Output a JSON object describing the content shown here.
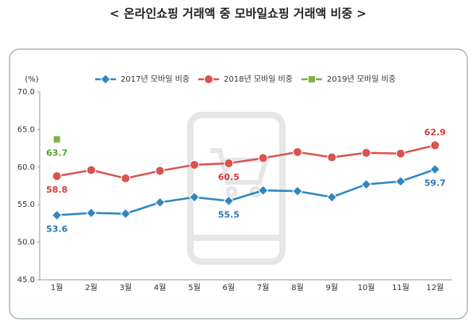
{
  "chart_data": {
    "type": "line",
    "title": "< 온라인쇼핑 거래액 중 모바일쇼핑 거래액 비중 >",
    "y_unit": "(%)",
    "categories": [
      "1월",
      "2월",
      "3월",
      "4월",
      "5월",
      "6월",
      "7월",
      "8월",
      "9월",
      "10월",
      "11월",
      "12월"
    ],
    "series": [
      {
        "name": "2017년 모바일 비중",
        "color": "#2e86c1",
        "label_color": "#2e75b6",
        "marker": "diamond",
        "values": [
          53.6,
          53.9,
          53.8,
          55.3,
          56.0,
          55.5,
          56.9,
          56.8,
          56.0,
          57.7,
          58.1,
          59.7
        ],
        "value_labels": [
          "53.6",
          null,
          null,
          null,
          null,
          "55.5",
          null,
          null,
          null,
          null,
          null,
          "59.7"
        ]
      },
      {
        "name": "2018년 모바일 비중",
        "color": "#d9534f",
        "label_color": "#d63c3c",
        "marker": "circle",
        "values": [
          58.8,
          59.6,
          58.5,
          59.5,
          60.3,
          60.5,
          61.2,
          62.0,
          61.3,
          61.9,
          61.8,
          62.9
        ],
        "value_labels": [
          "58.8",
          null,
          null,
          null,
          null,
          "60.5",
          null,
          null,
          null,
          null,
          null,
          "62.9"
        ]
      },
      {
        "name": "2019년 모바일 비중",
        "color": "#7cb342",
        "label_color": "#5a9e2f",
        "marker": "square",
        "values": [
          63.7,
          null,
          null,
          null,
          null,
          null,
          null,
          null,
          null,
          null,
          null,
          null
        ],
        "value_labels": [
          "63.7",
          null,
          null,
          null,
          null,
          null,
          null,
          null,
          null,
          null,
          null,
          null
        ]
      }
    ],
    "ylim": [
      45,
      70
    ],
    "yticks": [
      {
        "value": 45,
        "label": "45.0"
      },
      {
        "value": 50,
        "label": "50.0"
      },
      {
        "value": 55,
        "label": "55.0"
      },
      {
        "value": 60,
        "label": "60.0"
      },
      {
        "value": 65,
        "label": "65.0"
      },
      {
        "value": 70,
        "label": "70.0"
      }
    ],
    "grid": false
  }
}
